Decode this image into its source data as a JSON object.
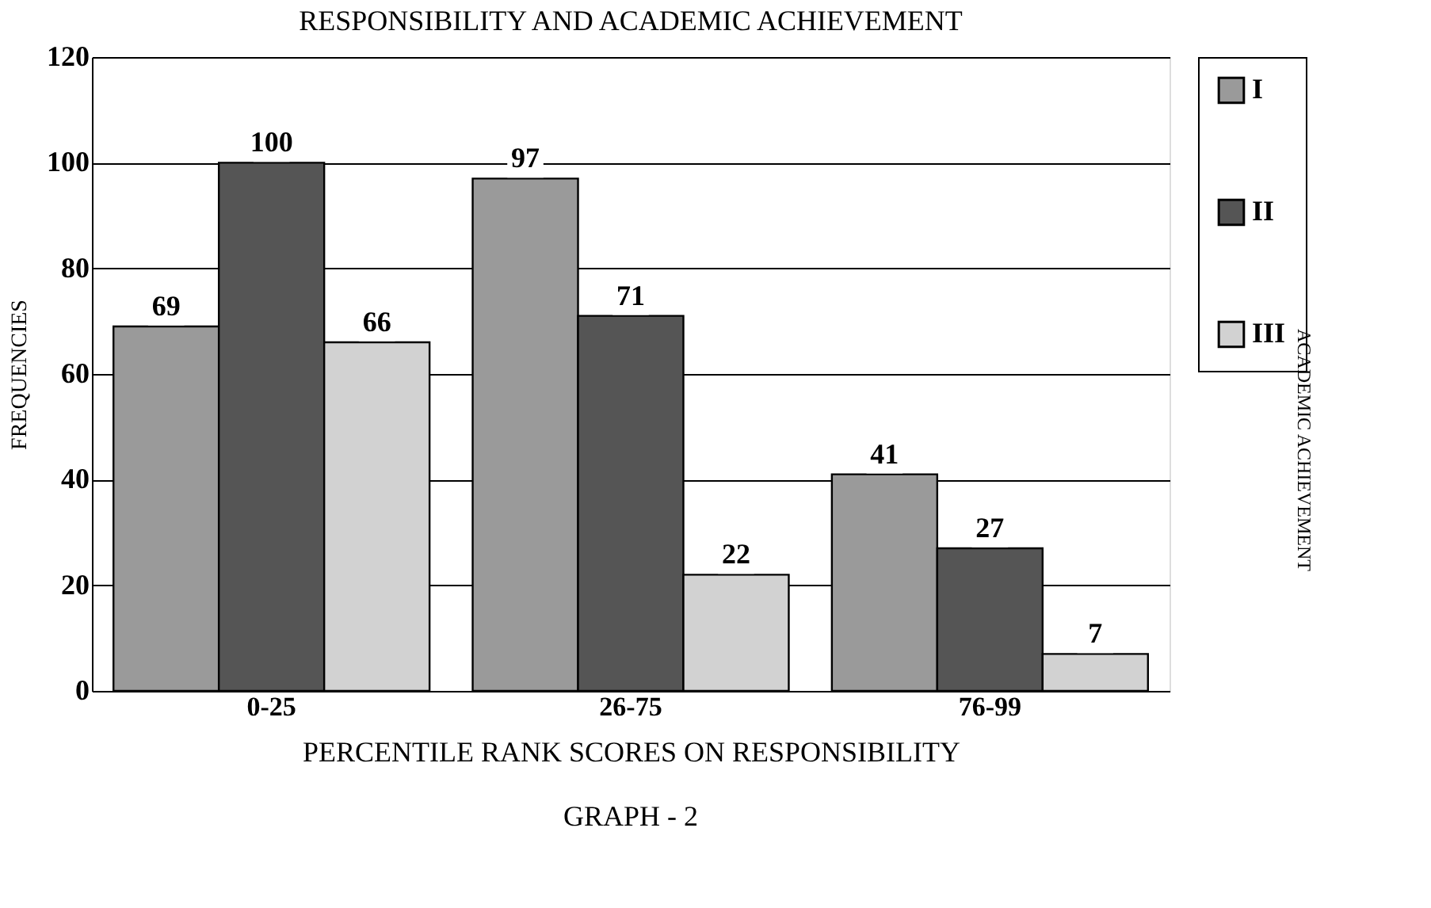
{
  "chart_data": {
    "type": "bar",
    "title": "RESPONSIBILITY AND ACADEMIC ACHIEVEMENT",
    "xlabel": "PERCENTILE RANK SCORES ON RESPONSIBILITY",
    "ylabel": "FREQUENCIES",
    "legend_title": "ACADEMIC ACHIEVEMENT",
    "annotations": [
      "GRAPH - 2"
    ],
    "categories": [
      "0-25",
      "26-75",
      "76-99"
    ],
    "series": [
      {
        "name": "I",
        "color": "#9a9a9a",
        "values": [
          69,
          97,
          41
        ]
      },
      {
        "name": "II",
        "color": "#555555",
        "values": [
          100,
          71,
          27
        ]
      },
      {
        "name": "III",
        "color": "#d2d2d2",
        "values": [
          66,
          22,
          7
        ]
      }
    ],
    "ylim": [
      0,
      120
    ],
    "yticks": [
      0,
      20,
      40,
      60,
      80,
      100,
      120
    ],
    "grid": "y",
    "legend": "right",
    "data_labels": true
  }
}
